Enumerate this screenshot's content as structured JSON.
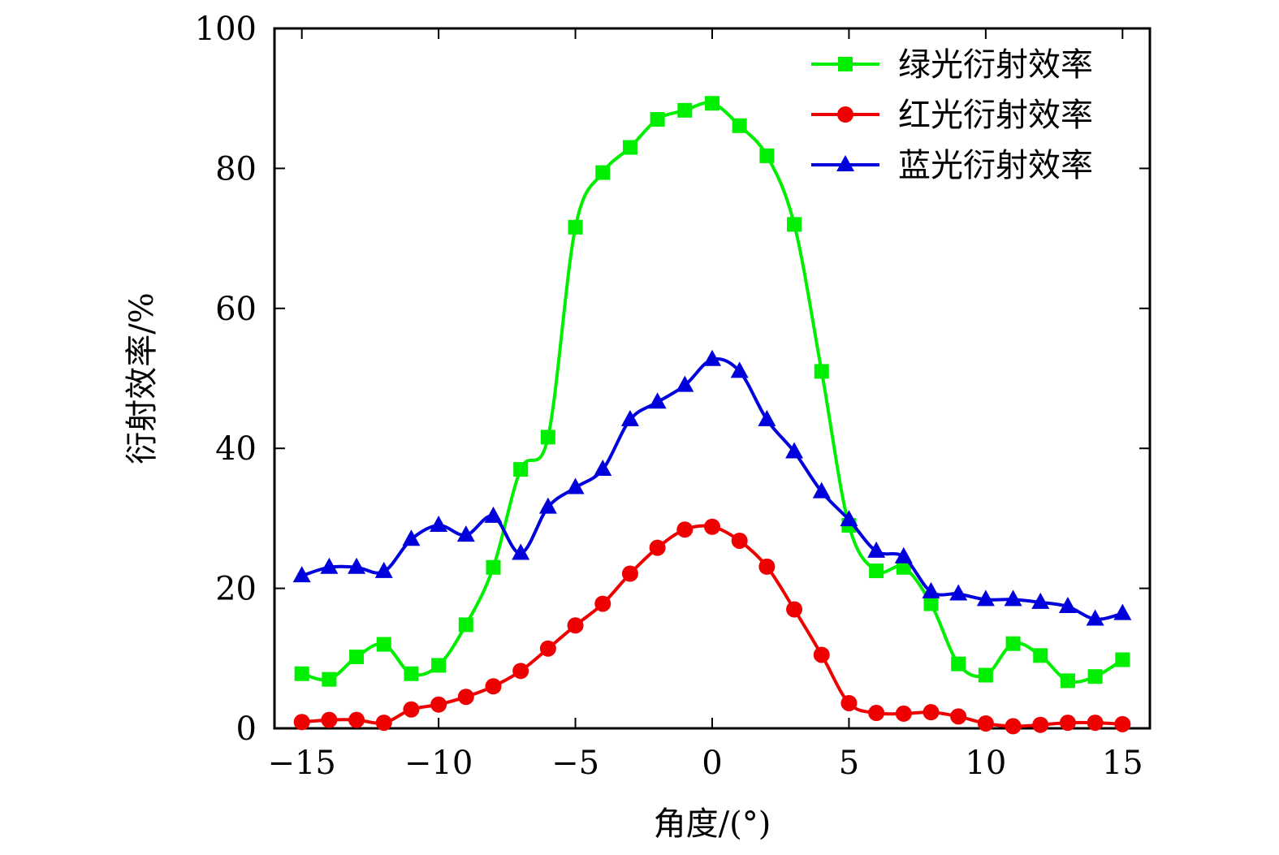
{
  "chart_data": {
    "type": "line",
    "title": "",
    "xlabel": "角度/(°)",
    "ylabel": "衍射效率/%",
    "xlim": [
      -16,
      16
    ],
    "ylim": [
      0,
      100
    ],
    "xticks": [
      -15,
      -10,
      -5,
      0,
      5,
      10,
      15
    ],
    "xtick_labels": [
      "−15",
      "−10",
      "−5",
      "0",
      "5",
      "10",
      "15"
    ],
    "yticks": [
      0,
      20,
      40,
      60,
      80,
      100
    ],
    "ytick_labels": [
      "0",
      "20",
      "40",
      "60",
      "80",
      "100"
    ],
    "legend_position": "top-right",
    "x": [
      -15,
      -14,
      -13,
      -12,
      -11,
      -10,
      -9,
      -8,
      -7,
      -6,
      -5,
      -4,
      -3,
      -2,
      -1,
      0,
      1,
      2,
      3,
      4,
      5,
      6,
      7,
      8,
      9,
      10,
      11,
      12,
      13,
      14,
      15
    ],
    "series": [
      {
        "name": "绿光衍射效率",
        "color": "#00ee00",
        "marker": "square",
        "values": [
          7.8,
          7.0,
          10.2,
          12.0,
          7.8,
          9.0,
          14.8,
          23.0,
          37.0,
          41.6,
          71.6,
          79.4,
          83.0,
          87.0,
          88.3,
          89.3,
          86.1,
          81.8,
          72.0,
          51.0,
          29.0,
          22.5,
          23.0,
          17.8,
          9.2,
          7.6,
          12.1,
          10.4,
          6.8,
          7.4,
          9.8
        ]
      },
      {
        "name": "红光衍射效率",
        "color": "#ee0000",
        "marker": "circle",
        "values": [
          0.9,
          1.2,
          1.2,
          0.8,
          2.7,
          3.4,
          4.5,
          6.0,
          8.2,
          11.4,
          14.7,
          17.8,
          22.1,
          25.8,
          28.4,
          28.8,
          26.8,
          23.1,
          17.0,
          10.5,
          3.6,
          2.2,
          2.1,
          2.3,
          1.7,
          0.7,
          0.3,
          0.5,
          0.8,
          0.8,
          0.6
        ]
      },
      {
        "name": "蓝光衍射效率",
        "color": "#0000dd",
        "marker": "triangle",
        "values": [
          21.8,
          23.0,
          23.0,
          22.4,
          27.0,
          29.0,
          27.6,
          30.3,
          25.0,
          31.6,
          34.4,
          37.0,
          44.1,
          46.6,
          49.0,
          52.7,
          51.0,
          44.1,
          39.5,
          33.8,
          29.8,
          25.3,
          24.5,
          19.5,
          19.2,
          18.4,
          18.4,
          18.0,
          17.4,
          15.6,
          16.4
        ]
      }
    ]
  }
}
